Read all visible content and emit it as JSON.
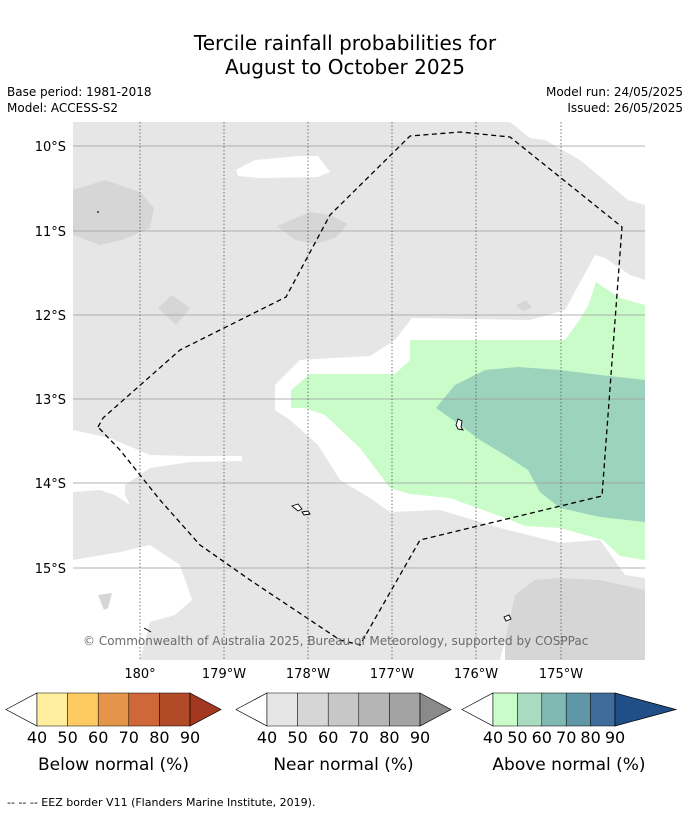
{
  "title_line1": "Tercile rainfall probabilities for",
  "title_line2": "August to October 2025",
  "base_period": "Base period: 1981-2018",
  "model": "Model: ACCESS-S2",
  "model_run": "Model run: 24/05/2025",
  "issued": "Issued: 26/05/2025",
  "map": {
    "latitudes": [
      "10°S",
      "11°S",
      "12°S",
      "13°S",
      "14°S",
      "15°S"
    ],
    "longitudes": [
      "180°",
      "179°W",
      "178°W",
      "177°W",
      "176°W",
      "175°W"
    ],
    "copyright": "© Commonwealth of Australia 2025, Bureau of Meteorology, supported by COSPPac",
    "colors": {
      "ocean_near40": "#e6e6e6",
      "near50": "#d6d6d6",
      "above40": "#c9fcc9",
      "above50": "#9cd3bd",
      "neutral": "#ffffff",
      "eez_line": "#000000"
    }
  },
  "colorbars": [
    {
      "title": "Below normal (%)",
      "ticks": [
        "40",
        "50",
        "60",
        "70",
        "80",
        "90"
      ],
      "colors": [
        "#ffee9e",
        "#fecb63",
        "#e5954a",
        "#d0673a",
        "#b04a27",
        "#a33820"
      ]
    },
    {
      "title": "Near normal (%)",
      "ticks": [
        "40",
        "50",
        "60",
        "70",
        "80",
        "90"
      ],
      "colors": [
        "#e6e6e6",
        "#d6d6d6",
        "#c7c7c7",
        "#b5b5b5",
        "#a3a3a3",
        "#8a8a8a"
      ]
    },
    {
      "title": "Above normal (%)",
      "ticks": [
        "40",
        "50",
        "60",
        "70",
        "80",
        "90"
      ],
      "colors": [
        "#c9fcc9",
        "#a8dbbf",
        "#80b9b3",
        "#5f97a6",
        "#3f6c9b",
        "#1f4f86"
      ]
    }
  ],
  "footnote": "-- -- -- EEZ border V11 (Flanders Marine Institute, 2019)."
}
